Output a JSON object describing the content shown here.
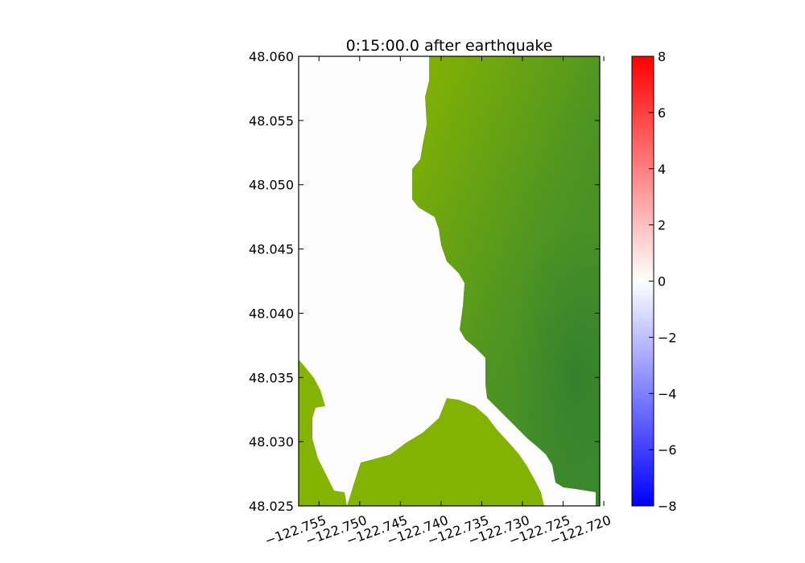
{
  "chart_data": {
    "type": "heatmap",
    "title": "0:15:00.0 after earthquake",
    "xlabel": "",
    "ylabel": "",
    "xlim": [
      -122.7575,
      -122.7205
    ],
    "ylim": [
      48.025,
      48.06
    ],
    "x_ticks": [
      -122.755,
      -122.75,
      -122.745,
      -122.74,
      -122.735,
      -122.73,
      -122.725,
      -122.72
    ],
    "x_tick_labels": [
      "−122.755",
      "−122.750",
      "−122.745",
      "−122.740",
      "−122.735",
      "−122.730",
      "−122.725",
      "−122.720"
    ],
    "y_ticks": [
      48.06,
      48.055,
      48.05,
      48.045,
      48.04,
      48.035,
      48.03,
      48.025
    ],
    "y_tick_labels": [
      "48.060",
      "48.055",
      "48.050",
      "48.045",
      "48.040",
      "48.035",
      "48.030",
      "48.025"
    ],
    "colorbar": {
      "range": [
        -8,
        8
      ],
      "ticks": [
        8,
        6,
        4,
        2,
        0,
        -2,
        -4,
        -6,
        -8
      ],
      "tick_labels": [
        "8",
        "6",
        "4",
        "2",
        "0",
        "−2",
        "−4",
        "−6",
        "−8"
      ],
      "colors": [
        "#0000ff",
        "#ffffff",
        "#ff0000"
      ]
    },
    "land_colors": [
      "#86b400",
      "#4e9422",
      "#3c8a2c"
    ],
    "water_color": "#fdfdfd",
    "grid": false,
    "water_value_approx": 0
  }
}
